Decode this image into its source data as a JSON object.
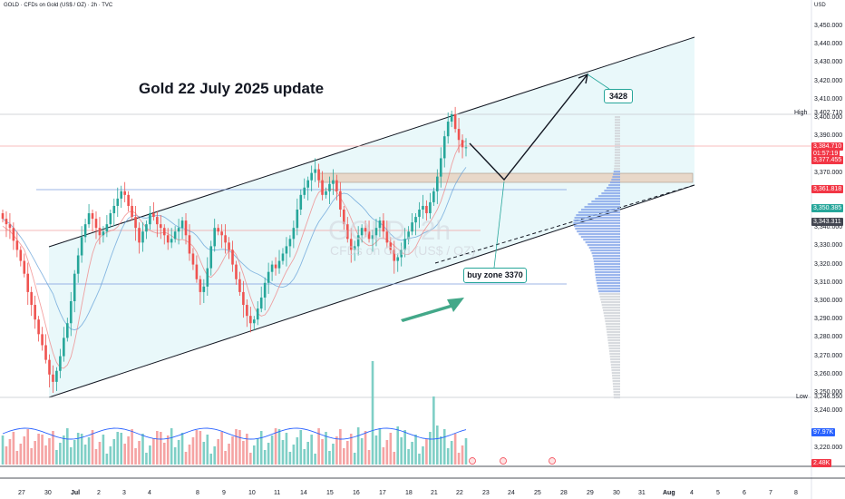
{
  "header": {
    "text": "GOLD · CFDs on Gold (US$ / OZ) · 2h · TVC"
  },
  "currency": "USD",
  "title": "Gold 22 July 2025 update",
  "watermark": {
    "symbol": "GOLD, 2h",
    "name": "CFDs on Gold (US$ / OZ)"
  },
  "annotations": {
    "target": "3428",
    "buy_zone": "buy zone 3370"
  },
  "price_axis": {
    "ticks": [
      "3,450.000",
      "3,440.000",
      "3,430.000",
      "3,420.000",
      "3,410.000",
      "3,400.000",
      "3,390.000",
      "3,370.000",
      "3,340.000",
      "3,330.000",
      "3,320.000",
      "3,310.000",
      "3,300.000",
      "3,290.000",
      "3,280.000",
      "3,270.000",
      "3,260.000",
      "3,250.000",
      "3,240.000",
      "3,220.000"
    ],
    "high_label": "High",
    "high_value": "3,402.710",
    "low_label": "Low",
    "low_value": "3,246.550",
    "tags": [
      {
        "text": "3,384.710",
        "color": "#f23645"
      },
      {
        "text": "01:57:19",
        "color": "#f23645"
      },
      {
        "text": "3,377.455",
        "color": "#f23645"
      },
      {
        "text": "3,361.818",
        "color": "#f23645"
      },
      {
        "text": "3,350.385",
        "color": "#26a69a"
      },
      {
        "text": "3,343.311",
        "color": "#434651"
      },
      {
        "text": "97.97K",
        "color": "#2962ff"
      },
      {
        "text": "2.48K",
        "color": "#f23645"
      }
    ]
  },
  "time_axis": [
    "27",
    "30",
    "Jul",
    "2",
    "3",
    "4",
    "8",
    "9",
    "10",
    "11",
    "14",
    "15",
    "16",
    "17",
    "18",
    "21",
    "22",
    "23",
    "24",
    "25",
    "28",
    "29",
    "30",
    "31",
    "Aug",
    "4",
    "5",
    "6",
    "7",
    "8"
  ],
  "colors": {
    "up": "#26a69a",
    "down": "#ef5350",
    "channel": "#e0f7fa",
    "zone": "#e8d5c4",
    "ma_blue": "#5b9bd5",
    "arrow": "#43a889"
  },
  "chart_data": {
    "type": "candlestick",
    "symbol": "GOLD",
    "timeframe": "2h",
    "ylim": [
      3215,
      3455
    ],
    "high": 3402.71,
    "low": 3246.55,
    "current_price": 3384.71,
    "levels": {
      "buy_zone": 3370,
      "target": 3428,
      "support_line": 3361.818,
      "lower_line": 3309
    },
    "closes": [
      3345,
      3342,
      3340,
      3333,
      3328,
      3322,
      3315,
      3305,
      3298,
      3290,
      3282,
      3276,
      3268,
      3260,
      3256,
      3262,
      3270,
      3280,
      3288,
      3300,
      3315,
      3325,
      3335,
      3342,
      3348,
      3345,
      3340,
      3336,
      3338,
      3342,
      3348,
      3352,
      3356,
      3360,
      3358,
      3352,
      3346,
      3340,
      3332,
      3338,
      3342,
      3348,
      3346,
      3342,
      3340,
      3336,
      3332,
      3334,
      3338,
      3340,
      3344,
      3336,
      3326,
      3320,
      3312,
      3305,
      3308,
      3318,
      3330,
      3340,
      3338,
      3336,
      3332,
      3328,
      3320,
      3312,
      3305,
      3298,
      3292,
      3288,
      3290,
      3296,
      3302,
      3310,
      3316,
      3320,
      3318,
      3322,
      3326,
      3330,
      3334,
      3340,
      3350,
      3358,
      3362,
      3366,
      3370,
      3372,
      3366,
      3358,
      3360,
      3364,
      3366,
      3360,
      3350,
      3342,
      3334,
      3328,
      3330,
      3336,
      3340,
      3338,
      3334,
      3336,
      3340,
      3344,
      3338,
      3332,
      3328,
      3322,
      3324,
      3328,
      3334,
      3338,
      3343,
      3346,
      3350,
      3352,
      3348,
      3354,
      3360,
      3368,
      3378,
      3390,
      3398,
      3402,
      3394,
      3388,
      3384,
      3384
    ]
  }
}
